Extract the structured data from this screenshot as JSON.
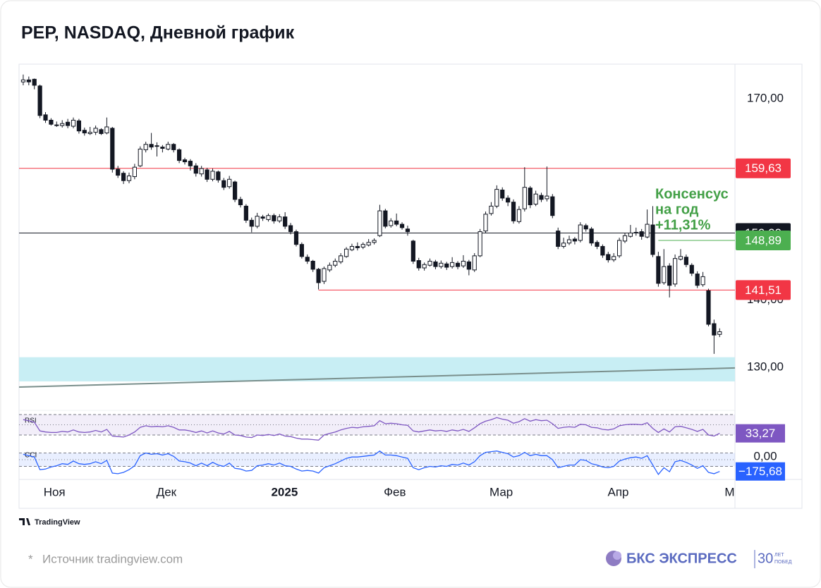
{
  "header": {
    "title": "PEP, NASDAQ, Дневной график"
  },
  "chart_data": {
    "type": "candlestick",
    "xlim": [
      -0.75,
      127.75
    ],
    "ylim": [
      125.9,
      175.04
    ],
    "xticks": [
      {
        "value": 5.6,
        "label": "Ноя"
      },
      {
        "value": 25.7,
        "label": "Дек"
      },
      {
        "value": 46.9,
        "label": "2025"
      },
      {
        "value": 66.7,
        "label": "Фев"
      },
      {
        "value": 85.8,
        "label": "Мар"
      },
      {
        "value": 106.8,
        "label": "Апр"
      },
      {
        "value": 126.8,
        "label": "М"
      }
    ],
    "yticks": [
      {
        "value": 170,
        "label": "170,00"
      },
      {
        "value": 140,
        "label": "140,00"
      },
      {
        "value": 130,
        "label": "130,00"
      }
    ],
    "up_color": "#ffffff",
    "down_color": "#131722",
    "wick_color": "#131722",
    "ohlc": [
      [
        172.5,
        173.6,
        172.0,
        172.8
      ],
      [
        172.8,
        173.3,
        172.0,
        172.5
      ],
      [
        172.9,
        173.0,
        171.4,
        172.0
      ],
      [
        171.9,
        172.1,
        167.1,
        167.5
      ],
      [
        167.6,
        168.0,
        166.4,
        166.8
      ],
      [
        166.8,
        167.1,
        166.0,
        166.2
      ],
      [
        166.1,
        166.6,
        165.8,
        166.0
      ],
      [
        166.0,
        166.8,
        165.7,
        166.3
      ],
      [
        166.5,
        167.0,
        165.6,
        166.0
      ],
      [
        165.9,
        167.2,
        165.6,
        166.8
      ],
      [
        166.7,
        167.0,
        164.8,
        165.2
      ],
      [
        165.3,
        165.7,
        164.5,
        164.9
      ],
      [
        164.8,
        165.8,
        164.6,
        165.0
      ],
      [
        165.0,
        166.0,
        164.6,
        165.6
      ],
      [
        165.4,
        165.6,
        164.6,
        164.8
      ],
      [
        164.9,
        167.2,
        164.7,
        165.8
      ],
      [
        165.6,
        165.8,
        159.0,
        159.5
      ],
      [
        159.5,
        160.0,
        158.2,
        158.6
      ],
      [
        158.9,
        159.2,
        157.3,
        157.8
      ],
      [
        157.8,
        159.0,
        157.4,
        158.5
      ],
      [
        158.4,
        160.3,
        158.0,
        159.8
      ],
      [
        160.0,
        162.9,
        159.8,
        162.5
      ],
      [
        162.4,
        163.6,
        162.0,
        163.2
      ],
      [
        163.2,
        164.9,
        162.4,
        162.8
      ],
      [
        162.9,
        163.5,
        161.4,
        163.0
      ],
      [
        162.8,
        163.1,
        162.0,
        162.6
      ],
      [
        162.5,
        163.6,
        162.3,
        163.2
      ],
      [
        163.2,
        163.4,
        162.0,
        162.4
      ],
      [
        162.4,
        162.6,
        160.4,
        160.8
      ],
      [
        160.9,
        161.2,
        160.2,
        160.6
      ],
      [
        160.7,
        161.0,
        159.3,
        160.0
      ],
      [
        160.0,
        160.4,
        158.4,
        158.9
      ],
      [
        158.8,
        160.0,
        158.4,
        159.6
      ],
      [
        159.4,
        159.7,
        157.6,
        158.0
      ],
      [
        158.0,
        159.6,
        157.7,
        159.2
      ],
      [
        159.1,
        159.3,
        157.5,
        157.9
      ],
      [
        157.8,
        158.2,
        156.4,
        156.8
      ],
      [
        156.9,
        158.5,
        156.6,
        158.0
      ],
      [
        157.6,
        157.8,
        154.6,
        155.0
      ],
      [
        155.0,
        155.4,
        153.8,
        154.2
      ],
      [
        154.0,
        154.3,
        151.5,
        151.9
      ],
      [
        151.9,
        152.3,
        150.1,
        151.0
      ],
      [
        151.0,
        153.0,
        150.7,
        152.5
      ],
      [
        152.4,
        152.7,
        151.8,
        152.2
      ],
      [
        152.0,
        152.9,
        151.7,
        152.6
      ],
      [
        152.6,
        152.9,
        151.4,
        151.8
      ],
      [
        151.8,
        152.8,
        151.5,
        152.4
      ],
      [
        152.4,
        153.1,
        150.6,
        151.0
      ],
      [
        151.1,
        151.5,
        149.8,
        150.2
      ],
      [
        150.2,
        150.5,
        148.0,
        148.3
      ],
      [
        148.3,
        148.6,
        146.2,
        146.5
      ],
      [
        146.4,
        146.8,
        145.4,
        145.8
      ],
      [
        145.8,
        146.0,
        144.2,
        144.6
      ],
      [
        144.6,
        144.8,
        141.6,
        142.6
      ],
      [
        142.8,
        145.0,
        142.4,
        144.7
      ],
      [
        144.5,
        145.6,
        144.2,
        145.2
      ],
      [
        145.2,
        146.2,
        144.9,
        145.8
      ],
      [
        145.7,
        147.0,
        145.4,
        146.6
      ],
      [
        146.5,
        147.9,
        146.3,
        147.6
      ],
      [
        147.5,
        148.4,
        147.3,
        148.0
      ],
      [
        148.0,
        148.6,
        147.4,
        147.8
      ],
      [
        147.9,
        148.6,
        147.6,
        148.3
      ],
      [
        148.2,
        149.1,
        148.0,
        148.6
      ],
      [
        148.6,
        149.2,
        148.3,
        148.9
      ],
      [
        149.6,
        154.2,
        149.4,
        153.3
      ],
      [
        153.3,
        153.6,
        150.7,
        151.0
      ],
      [
        151.1,
        152.2,
        150.8,
        151.8
      ],
      [
        151.8,
        152.9,
        151.0,
        151.3
      ],
      [
        151.3,
        151.6,
        150.5,
        150.8
      ],
      [
        150.6,
        151.1,
        149.6,
        150.2
      ],
      [
        148.8,
        149.0,
        145.4,
        145.8
      ],
      [
        145.9,
        146.3,
        144.4,
        144.8
      ],
      [
        144.8,
        145.6,
        144.4,
        145.3
      ],
      [
        145.2,
        146.2,
        145.0,
        145.8
      ],
      [
        145.7,
        146.0,
        144.6,
        145.0
      ],
      [
        145.0,
        145.9,
        144.7,
        145.5
      ],
      [
        145.4,
        145.7,
        144.5,
        144.9
      ],
      [
        145.0,
        146.4,
        144.7,
        145.6
      ],
      [
        145.5,
        145.8,
        144.6,
        145.0
      ],
      [
        145.1,
        146.7,
        144.8,
        145.8
      ],
      [
        145.7,
        146.0,
        143.7,
        144.6
      ],
      [
        144.5,
        147.0,
        144.2,
        146.6
      ],
      [
        146.6,
        150.6,
        146.4,
        150.2
      ],
      [
        150.3,
        153.2,
        150.0,
        152.8
      ],
      [
        152.9,
        154.6,
        152.6,
        154.0
      ],
      [
        154.0,
        157.1,
        153.7,
        156.5
      ],
      [
        156.4,
        156.8,
        154.8,
        155.2
      ],
      [
        155.2,
        155.6,
        154.0,
        154.6
      ],
      [
        154.6,
        155.0,
        151.4,
        151.8
      ],
      [
        151.7,
        154.0,
        151.4,
        153.5
      ],
      [
        153.6,
        159.8,
        153.2,
        156.8
      ],
      [
        156.7,
        157.0,
        153.7,
        154.2
      ],
      [
        154.3,
        156.3,
        154.0,
        155.8
      ],
      [
        155.6,
        156.0,
        154.6,
        155.0
      ],
      [
        155.1,
        159.9,
        154.7,
        155.5
      ],
      [
        155.4,
        155.8,
        152.2,
        152.6
      ],
      [
        150.3,
        150.8,
        147.6,
        148.0
      ],
      [
        148.0,
        149.3,
        147.7,
        148.5
      ],
      [
        148.5,
        149.6,
        148.2,
        149.0
      ],
      [
        149.1,
        149.4,
        148.3,
        148.8
      ],
      [
        148.9,
        151.6,
        148.6,
        151.2
      ],
      [
        151.1,
        151.4,
        150.2,
        150.6
      ],
      [
        150.6,
        150.9,
        148.1,
        148.5
      ],
      [
        148.6,
        148.9,
        147.6,
        148.0
      ],
      [
        148.0,
        148.3,
        146.3,
        146.7
      ],
      [
        146.8,
        147.2,
        145.6,
        146.0
      ],
      [
        146.0,
        147.0,
        145.7,
        146.5
      ],
      [
        146.6,
        149.3,
        146.3,
        148.9
      ],
      [
        148.8,
        150.0,
        148.5,
        149.6
      ],
      [
        149.5,
        151.2,
        149.3,
        150.0
      ],
      [
        150.0,
        150.8,
        149.6,
        150.1
      ],
      [
        150.2,
        150.6,
        149.0,
        149.5
      ],
      [
        149.4,
        153.5,
        149.2,
        151.3
      ],
      [
        151.2,
        154.0,
        146.4,
        146.8
      ],
      [
        146.5,
        147.2,
        142.0,
        142.5
      ],
      [
        142.6,
        147.6,
        142.3,
        145.0
      ],
      [
        145.1,
        145.5,
        140.4,
        142.2
      ],
      [
        142.4,
        146.8,
        142.0,
        146.2
      ],
      [
        146.1,
        147.6,
        145.9,
        146.5
      ],
      [
        146.4,
        146.8,
        144.9,
        145.3
      ],
      [
        145.2,
        145.5,
        143.6,
        144.0
      ],
      [
        143.9,
        144.3,
        141.8,
        142.2
      ],
      [
        142.3,
        144.2,
        142.0,
        143.5
      ],
      [
        141.4,
        141.7,
        136.1,
        136.4
      ],
      [
        136.5,
        137.1,
        132.0,
        134.8
      ],
      [
        134.9,
        135.8,
        134.5,
        135.3
      ]
    ],
    "price_lines": [
      {
        "value": 159.63,
        "label": "159,63",
        "color": "#f23645"
      },
      {
        "value": 150,
        "label": "150,00",
        "color": "#131722"
      },
      {
        "value": 148.89,
        "label": "148,89",
        "color": "#4caf50",
        "from": 114
      },
      {
        "value": 141.51,
        "label": "141,51",
        "color": "#f23645",
        "from": 53
      }
    ],
    "annotation": {
      "lines": [
        "Консенсус",
        "на год",
        "+11,31%"
      ],
      "color": "#43a047"
    },
    "band": {
      "range": [
        127.9,
        131.5
      ],
      "color": "#c8eef4"
    },
    "trend_line": {
      "x": [
        -0.75,
        127.75
      ],
      "y": [
        127.06,
        129.9
      ],
      "color": "#7a8f8c"
    },
    "indicators": [
      {
        "name": "RSI",
        "color": "#7e57c2",
        "ylim": [
          12.1,
          74.1
        ],
        "levels": [
          30,
          50,
          70
        ],
        "last_label": "33,27",
        "values": [
          60,
          58,
          55,
          38,
          36,
          35,
          35,
          37,
          36,
          40,
          36,
          35,
          36,
          39,
          36,
          41,
          28,
          27,
          26,
          30,
          36,
          45,
          48,
          46,
          47,
          46,
          48,
          45,
          40,
          40,
          38,
          35,
          38,
          34,
          38,
          34,
          32,
          37,
          30,
          29,
          26,
          25,
          30,
          29,
          31,
          29,
          32,
          28,
          27,
          24,
          22,
          22,
          21,
          20,
          30,
          33,
          36,
          40,
          43,
          45,
          44,
          46,
          47,
          48,
          58,
          52,
          53,
          52,
          50,
          49,
          38,
          36,
          38,
          40,
          38,
          39,
          37,
          40,
          38,
          41,
          37,
          44,
          52,
          57,
          60,
          64,
          61,
          59,
          53,
          56,
          62,
          57,
          60,
          58,
          59,
          52,
          43,
          45,
          46,
          45,
          51,
          50,
          45,
          44,
          41,
          40,
          42,
          48,
          50,
          51,
          51,
          50,
          54,
          43,
          35,
          42,
          36,
          46,
          47,
          44,
          41,
          37,
          41,
          30,
          28,
          33.27
        ]
      },
      {
        "name": "CCI",
        "color": "#2962ff",
        "ylim": [
          -273.7,
          189.5
        ],
        "levels": [
          -100,
          0,
          100
        ],
        "yticks": [
          {
            "value": 0,
            "label": "0,00"
          }
        ],
        "last_label": "−175,68",
        "values": [
          80,
          60,
          40,
          -150,
          -140,
          -110,
          -90,
          -60,
          -70,
          -20,
          -60,
          -70,
          -60,
          -30,
          -60,
          -10,
          -200,
          -210,
          -190,
          -150,
          -90,
          60,
          100,
          80,
          90,
          70,
          90,
          50,
          -20,
          -30,
          -50,
          -90,
          -50,
          -90,
          -40,
          -80,
          -100,
          -50,
          -130,
          -140,
          -170,
          -160,
          -90,
          -80,
          -60,
          -80,
          -50,
          -90,
          -100,
          -140,
          -170,
          -160,
          -170,
          -200,
          -120,
          -90,
          -60,
          -20,
          20,
          40,
          40,
          50,
          60,
          70,
          130,
          70,
          70,
          60,
          40,
          20,
          -120,
          -150,
          -120,
          -100,
          -110,
          -90,
          -100,
          -70,
          -80,
          -50,
          -80,
          -30,
          60,
          110,
          120,
          130,
          110,
          90,
          40,
          60,
          110,
          60,
          80,
          60,
          60,
          0,
          -120,
          -100,
          -80,
          -80,
          0,
          -10,
          -60,
          -80,
          -110,
          -120,
          -100,
          -20,
          10,
          30,
          40,
          20,
          60,
          -80,
          -220,
          -120,
          -180,
          -30,
          -10,
          -40,
          -80,
          -130,
          -90,
          -190,
          -210,
          -175.68
        ]
      }
    ]
  },
  "footer": {
    "watermark": "TradingView",
    "source_mark": "*",
    "source": "Источник tradingview.com",
    "brand": "БКС ЭКСПРЕСС",
    "badge": "30",
    "badge_top": "ЛЕТ",
    "badge_bottom": "ПОБЕД"
  }
}
